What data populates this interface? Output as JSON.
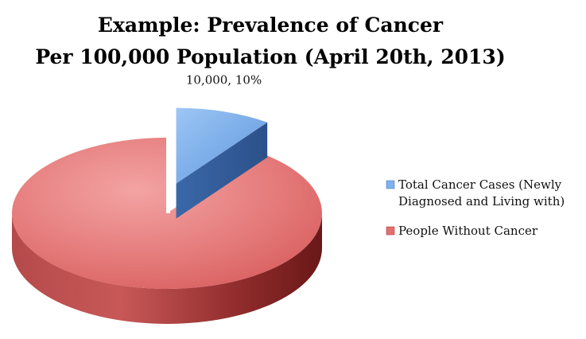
{
  "chart_data": {
    "type": "pie",
    "style": "3d-exploded",
    "title": "Example: Prevalence of Cancer",
    "subtitle": "Per 100,000 Population (April 20th, 2013)",
    "slices": [
      {
        "legend": [
          "Total Cancer Cases (Newly",
          "Diagnosed and Living with)"
        ],
        "value": 10000,
        "percent": 10,
        "data_label": "10,000, 10%",
        "exploded": true,
        "color": "#7FB2EE",
        "side_color": "#3F6FB0"
      },
      {
        "legend": [
          "People Without Cancer"
        ],
        "value": 90000,
        "percent": 90,
        "data_label": "",
        "exploded": false,
        "color": "#E27070",
        "side_color": "#9A2E2E"
      }
    ],
    "legend_position": "right"
  }
}
